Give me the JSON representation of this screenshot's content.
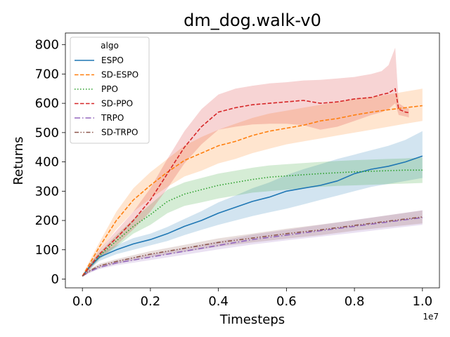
{
  "chart_data": {
    "type": "line",
    "title": "dm_dog.walk-v0",
    "xlabel": "Timesteps",
    "ylabel": "Returns",
    "x_offset_label": "1e7",
    "xlim": [
      -0.05,
      1.05
    ],
    "ylim": [
      -30,
      840
    ],
    "xticks": [
      0.0,
      0.2,
      0.4,
      0.6,
      0.8,
      1.0
    ],
    "xtick_labels": [
      "0.0",
      "0.2",
      "0.4",
      "0.6",
      "0.8",
      "1.0"
    ],
    "yticks": [
      0,
      100,
      200,
      300,
      400,
      500,
      600,
      700,
      800
    ],
    "ytick_labels": [
      "0",
      "100",
      "200",
      "300",
      "400",
      "500",
      "600",
      "700",
      "800"
    ],
    "legend_title": "algo",
    "legend_position": "upper-left",
    "series": [
      {
        "name": "ESPO",
        "color": "#1f77b4",
        "dash": "solid",
        "x": [
          0.0,
          0.02,
          0.05,
          0.1,
          0.15,
          0.2,
          0.25,
          0.3,
          0.35,
          0.4,
          0.45,
          0.5,
          0.55,
          0.6,
          0.65,
          0.7,
          0.75,
          0.8,
          0.85,
          0.9,
          0.95,
          1.0
        ],
        "y": [
          10,
          40,
          75,
          100,
          120,
          135,
          155,
          180,
          200,
          225,
          245,
          265,
          280,
          300,
          310,
          320,
          335,
          360,
          375,
          385,
          400,
          420
        ],
        "lower": [
          8,
          32,
          62,
          85,
          100,
          115,
          130,
          150,
          168,
          185,
          200,
          215,
          228,
          240,
          255,
          270,
          285,
          300,
          315,
          325,
          335,
          345
        ],
        "upper": [
          12,
          48,
          88,
          115,
          140,
          155,
          178,
          205,
          232,
          262,
          285,
          310,
          330,
          355,
          375,
          392,
          410,
          425,
          440,
          455,
          475,
          505
        ]
      },
      {
        "name": "SD-ESPO",
        "color": "#ff7f0e",
        "dash": "dashed",
        "x": [
          0.0,
          0.02,
          0.05,
          0.1,
          0.15,
          0.2,
          0.25,
          0.3,
          0.35,
          0.4,
          0.45,
          0.5,
          0.55,
          0.6,
          0.65,
          0.7,
          0.75,
          0.8,
          0.85,
          0.9,
          0.95,
          1.0
        ],
        "y": [
          10,
          50,
          110,
          200,
          270,
          320,
          365,
          405,
          430,
          455,
          470,
          490,
          505,
          515,
          525,
          540,
          548,
          560,
          570,
          578,
          585,
          592
        ],
        "lower": [
          8,
          40,
          95,
          170,
          230,
          275,
          315,
          350,
          370,
          395,
          410,
          430,
          445,
          460,
          470,
          480,
          490,
          500,
          510,
          520,
          530,
          540
        ],
        "upper": [
          12,
          60,
          125,
          230,
          310,
          365,
          410,
          455,
          485,
          510,
          530,
          550,
          565,
          575,
          585,
          595,
          605,
          615,
          622,
          630,
          640,
          650
        ]
      },
      {
        "name": "PPO",
        "color": "#2ca02c",
        "dash": "dotted",
        "x": [
          0.0,
          0.02,
          0.05,
          0.1,
          0.15,
          0.2,
          0.25,
          0.3,
          0.35,
          0.4,
          0.45,
          0.5,
          0.55,
          0.6,
          0.65,
          0.7,
          0.75,
          0.8,
          0.85,
          0.9,
          0.95,
          1.0
        ],
        "y": [
          10,
          40,
          80,
          130,
          180,
          220,
          265,
          290,
          305,
          320,
          330,
          340,
          348,
          352,
          356,
          360,
          363,
          366,
          368,
          370,
          372,
          372
        ],
        "lower": [
          8,
          32,
          68,
          110,
          155,
          185,
          225,
          250,
          262,
          275,
          285,
          295,
          300,
          305,
          310,
          315,
          318,
          320,
          322,
          324,
          326,
          328
        ],
        "upper": [
          12,
          48,
          92,
          150,
          205,
          255,
          305,
          330,
          345,
          360,
          370,
          380,
          388,
          392,
          396,
          400,
          403,
          406,
          408,
          410,
          412,
          415
        ]
      },
      {
        "name": "SD-PPO",
        "color": "#d62728",
        "dash": "dashed",
        "x": [
          0.0,
          0.02,
          0.05,
          0.1,
          0.15,
          0.2,
          0.25,
          0.3,
          0.35,
          0.4,
          0.45,
          0.5,
          0.55,
          0.6,
          0.65,
          0.7,
          0.75,
          0.8,
          0.85,
          0.88,
          0.9,
          0.92,
          0.93,
          0.95,
          0.96
        ],
        "y": [
          10,
          40,
          85,
          140,
          200,
          270,
          360,
          450,
          520,
          570,
          585,
          595,
          600,
          605,
          610,
          600,
          605,
          615,
          620,
          630,
          635,
          650,
          580,
          570,
          568
        ],
        "lower": [
          8,
          32,
          70,
          115,
          170,
          230,
          310,
          395,
          460,
          510,
          520,
          528,
          530,
          530,
          525,
          510,
          520,
          540,
          560,
          570,
          580,
          600,
          560,
          555,
          552
        ],
        "upper": [
          12,
          48,
          100,
          165,
          230,
          310,
          410,
          505,
          580,
          630,
          650,
          660,
          668,
          672,
          678,
          680,
          685,
          690,
          700,
          710,
          730,
          790,
          600,
          585,
          582
        ]
      },
      {
        "name": "TRPO",
        "color": "#9467bd",
        "dash": "dashdot",
        "x": [
          0.0,
          0.02,
          0.05,
          0.1,
          0.2,
          0.3,
          0.4,
          0.5,
          0.6,
          0.7,
          0.8,
          0.9,
          1.0
        ],
        "y": [
          10,
          25,
          40,
          55,
          75,
          95,
          115,
          135,
          150,
          165,
          180,
          195,
          210
        ],
        "lower": [
          8,
          20,
          34,
          47,
          65,
          83,
          101,
          118,
          132,
          145,
          158,
          172,
          185
        ],
        "upper": [
          12,
          30,
          46,
          63,
          85,
          107,
          129,
          152,
          168,
          185,
          202,
          218,
          235
        ]
      },
      {
        "name": "SD-TRPO",
        "color": "#8c564b",
        "dash": "dashdotdot",
        "x": [
          0.0,
          0.02,
          0.05,
          0.1,
          0.2,
          0.3,
          0.4,
          0.5,
          0.6,
          0.7,
          0.8,
          0.9,
          1.0
        ],
        "y": [
          10,
          28,
          45,
          60,
          85,
          105,
          125,
          140,
          155,
          168,
          183,
          198,
          212
        ],
        "lower": [
          8,
          22,
          38,
          52,
          75,
          93,
          111,
          125,
          138,
          150,
          165,
          178,
          190
        ],
        "upper": [
          12,
          34,
          52,
          68,
          95,
          117,
          139,
          155,
          172,
          186,
          201,
          218,
          234
        ]
      }
    ]
  }
}
